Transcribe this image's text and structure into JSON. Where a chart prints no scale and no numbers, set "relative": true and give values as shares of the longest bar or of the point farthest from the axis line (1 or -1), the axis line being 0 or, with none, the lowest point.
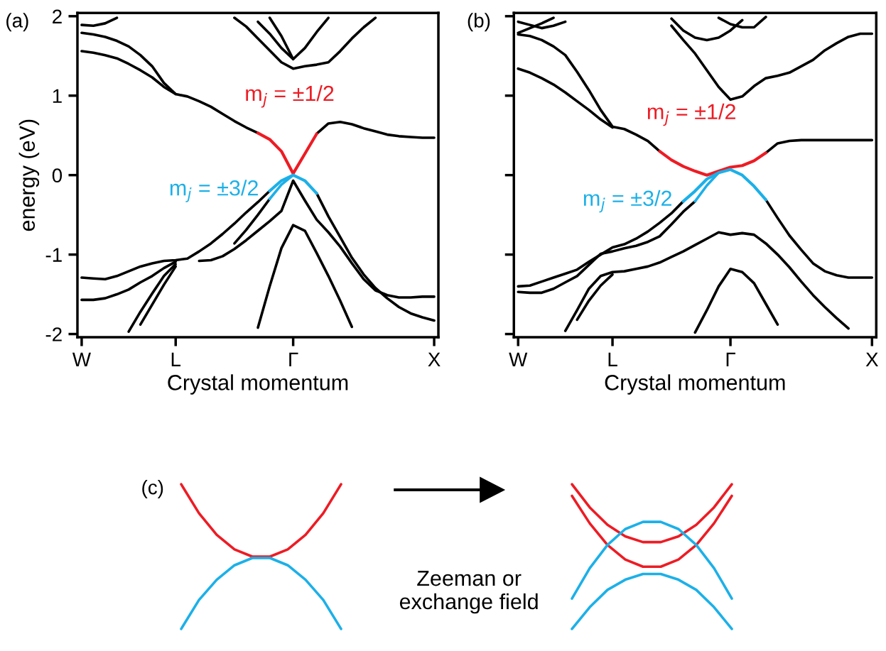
{
  "chart_data": [
    {
      "type": "line",
      "title": "(a)",
      "xlabel": "Crystal momentum",
      "ylabel": "energy (eV)",
      "categories": [
        "W",
        null,
        null,
        null,
        null,
        null,
        null,
        null,
        "L",
        null,
        null,
        null,
        null,
        null,
        null,
        null,
        null,
        null,
        "Γ",
        null,
        null,
        null,
        null,
        null,
        null,
        null,
        null,
        null,
        null,
        null,
        "X"
      ],
      "ylim": [
        -2.04,
        2.04
      ],
      "yticks": [
        -2,
        -1,
        0,
        1,
        2
      ],
      "series": [
        {
          "color": "#000000",
          "values": [
            1.79,
            1.77,
            1.74,
            1.69,
            1.62,
            1.51,
            1.37,
            1.16,
            1.02,
            0.99,
            0.93,
            0.86,
            0.77,
            0.68,
            0.6,
            0.53,
            null,
            null,
            null,
            null,
            0.52,
            0.65,
            0.67,
            0.64,
            0.59,
            0.55,
            0.51,
            0.49,
            0.48,
            0.47,
            0.47
          ]
        },
        {
          "color": "#000000",
          "values": [
            1.56,
            1.54,
            1.51,
            1.47,
            1.4,
            1.32,
            1.23,
            1.11,
            1.02,
            null,
            null,
            null,
            null,
            null,
            null,
            null,
            null,
            null,
            null,
            null,
            null,
            null,
            null,
            null,
            null,
            null,
            null,
            null,
            null,
            null,
            null
          ]
        },
        {
          "color": "#000000",
          "values": [
            null,
            null,
            null,
            null,
            null,
            null,
            null,
            null,
            null,
            null,
            null,
            null,
            null,
            1.98,
            1.87,
            1.72,
            1.57,
            1.42,
            1.34,
            1.37,
            1.39,
            1.42,
            1.56,
            1.72,
            1.86,
            1.98,
            null,
            null,
            null,
            null,
            null
          ]
        },
        {
          "color": "#000000",
          "values": [
            null,
            null,
            null,
            null,
            null,
            null,
            null,
            null,
            null,
            null,
            null,
            null,
            null,
            null,
            null,
            1.93,
            1.78,
            1.6,
            1.46,
            1.6,
            1.8,
            1.98,
            null,
            null,
            null,
            null,
            null,
            null,
            null,
            null,
            null
          ]
        },
        {
          "color": "#000000",
          "values": [
            null,
            null,
            null,
            null,
            null,
            null,
            null,
            null,
            null,
            null,
            null,
            null,
            null,
            null,
            null,
            null,
            1.98,
            1.75,
            1.46,
            null,
            null,
            null,
            null,
            null,
            null,
            null,
            null,
            null,
            null,
            null,
            null
          ]
        },
        {
          "color": "#000000",
          "values": [
            1.89,
            1.88,
            1.91,
            1.98,
            null,
            null,
            null,
            null,
            null,
            null,
            null,
            null,
            null,
            null,
            null,
            null,
            null,
            null,
            null,
            null,
            null,
            null,
            null,
            null,
            null,
            null,
            null,
            null,
            null,
            null,
            null
          ]
        },
        {
          "color": "#000000",
          "values": [
            -1.29,
            -1.3,
            -1.31,
            -1.27,
            -1.21,
            -1.15,
            -1.11,
            -1.08,
            -1.07,
            -1.05,
            -0.96,
            -0.86,
            -0.74,
            -0.61,
            -0.47,
            -0.34,
            -0.2,
            null,
            null,
            null,
            null,
            null,
            null,
            null,
            null,
            null,
            null,
            null,
            null,
            null,
            null
          ]
        },
        {
          "color": "#000000",
          "values": [
            null,
            null,
            null,
            null,
            null,
            null,
            null,
            null,
            null,
            null,
            null,
            null,
            null,
            -0.86,
            -0.69,
            -0.5,
            -0.3,
            null,
            null,
            null,
            null,
            null,
            null,
            null,
            null,
            null,
            null,
            null,
            null,
            null,
            null
          ]
        },
        {
          "color": "#000000",
          "values": [
            null,
            null,
            null,
            null,
            null,
            null,
            null,
            null,
            null,
            null,
            -1.08,
            -1.07,
            -1.02,
            -0.93,
            -0.82,
            -0.7,
            -0.58,
            -0.45,
            -0.07,
            -0.32,
            -0.56,
            -0.72,
            -0.9,
            -1.11,
            -1.31,
            -1.45,
            -1.51,
            -1.54,
            -1.54,
            -1.53,
            -1.53
          ]
        },
        {
          "color": "#000000",
          "values": [
            null,
            null,
            null,
            null,
            null,
            null,
            null,
            null,
            null,
            null,
            null,
            null,
            null,
            null,
            null,
            null,
            null,
            null,
            null,
            null,
            -0.23,
            -0.52,
            -0.78,
            -1.04,
            -1.25,
            -1.42,
            -1.55,
            -1.66,
            -1.74,
            -1.79,
            -1.83
          ]
        },
        {
          "color": "#000000",
          "values": [
            -1.57,
            -1.57,
            -1.55,
            -1.5,
            -1.44,
            -1.35,
            -1.27,
            -1.17,
            -1.09,
            null,
            null,
            null,
            null,
            null,
            null,
            null,
            null,
            null,
            null,
            null,
            null,
            null,
            null,
            null,
            null,
            null,
            null,
            null,
            null,
            null,
            null
          ]
        },
        {
          "color": "#000000",
          "values": [
            null,
            null,
            null,
            null,
            -1.97,
            -1.72,
            -1.49,
            -1.27,
            -1.12,
            null,
            null,
            null,
            null,
            null,
            null,
            null,
            null,
            null,
            null,
            null,
            null,
            null,
            null,
            null,
            null,
            null,
            null,
            null,
            null,
            null,
            null
          ]
        },
        {
          "color": "#000000",
          "values": [
            null,
            null,
            null,
            null,
            null,
            -1.88,
            -1.63,
            -1.38,
            -1.15,
            null,
            null,
            null,
            null,
            null,
            null,
            null,
            null,
            null,
            null,
            null,
            null,
            null,
            null,
            null,
            null,
            null,
            null,
            null,
            null,
            null,
            null
          ]
        },
        {
          "color": "#000000",
          "values": [
            null,
            null,
            null,
            null,
            null,
            null,
            null,
            null,
            null,
            null,
            null,
            null,
            null,
            null,
            null,
            -1.92,
            -1.4,
            -0.92,
            -0.63,
            -0.7,
            -0.98,
            -1.27,
            -1.58,
            -1.91,
            null,
            null,
            null,
            null,
            null,
            null,
            null
          ]
        },
        {
          "name": "m$_{j}$ = ±1/2",
          "color": "#ed1c24",
          "values": [
            null,
            null,
            null,
            null,
            null,
            null,
            null,
            null,
            null,
            null,
            null,
            null,
            null,
            null,
            null,
            0.53,
            0.45,
            0.3,
            0.02,
            0.27,
            0.52,
            null,
            null,
            null,
            null,
            null,
            null,
            null,
            null,
            null,
            null
          ]
        },
        {
          "name": "m$_{j}$ = ±3/2",
          "color": "#1cb0e8",
          "values": [
            null,
            null,
            null,
            null,
            null,
            null,
            null,
            null,
            null,
            null,
            null,
            null,
            null,
            null,
            null,
            null,
            -0.2,
            -0.07,
            0.0,
            -0.07,
            -0.23,
            null,
            null,
            null,
            null,
            null,
            null,
            null,
            null,
            null,
            null
          ]
        },
        {
          "color": "#1cb0e8",
          "values": [
            null,
            null,
            null,
            null,
            null,
            null,
            null,
            null,
            null,
            null,
            null,
            null,
            null,
            null,
            null,
            null,
            -0.3,
            -0.12,
            0.0,
            null,
            null,
            null,
            null,
            null,
            null,
            null,
            null,
            null,
            null,
            null,
            null
          ]
        }
      ]
    },
    {
      "type": "line",
      "title": "(b)",
      "xlabel": "Crystal momentum",
      "tick_labels": "x",
      "categories": [
        "W",
        null,
        null,
        null,
        null,
        null,
        null,
        null,
        "L",
        null,
        null,
        null,
        null,
        null,
        null,
        null,
        null,
        null,
        "Γ",
        null,
        null,
        null,
        null,
        null,
        null,
        null,
        null,
        null,
        null,
        null,
        "X"
      ],
      "ylim": [
        -2.04,
        2.04
      ],
      "yticks": [
        -2,
        -1,
        0,
        1,
        2
      ],
      "series": [
        {
          "color": "#000000",
          "values": [
            1.77,
            1.75,
            1.7,
            1.62,
            1.51,
            1.3,
            1.07,
            0.82,
            0.61,
            0.58,
            0.51,
            0.43,
            0.3,
            null,
            null,
            null,
            null,
            null,
            null,
            null,
            null,
            0.28,
            0.4,
            0.43,
            0.44,
            0.44,
            0.44,
            0.44,
            0.44,
            0.44,
            0.44
          ]
        },
        {
          "color": "#000000",
          "values": [
            1.34,
            1.29,
            1.22,
            1.14,
            1.04,
            0.93,
            0.82,
            0.7,
            0.6,
            null,
            null,
            null,
            null,
            null,
            null,
            null,
            null,
            null,
            null,
            null,
            null,
            null,
            null,
            null,
            null,
            null,
            null,
            null,
            null,
            null,
            null
          ]
        },
        {
          "color": "#000000",
          "values": [
            1.93,
            1.89,
            1.85,
            1.88,
            1.93,
            null,
            null,
            null,
            null,
            null,
            null,
            null,
            null,
            null,
            null,
            null,
            null,
            null,
            null,
            null,
            null,
            null,
            null,
            null,
            null,
            null,
            null,
            null,
            null,
            null,
            null
          ]
        },
        {
          "color": "#000000",
          "values": [
            1.79,
            1.85,
            1.91,
            1.98,
            null,
            null,
            null,
            null,
            null,
            null,
            null,
            null,
            null,
            null,
            null,
            null,
            null,
            null,
            null,
            null,
            null,
            null,
            null,
            null,
            null,
            null,
            null,
            null,
            null,
            null,
            null
          ]
        },
        {
          "color": "#000000",
          "values": [
            null,
            null,
            null,
            null,
            null,
            null,
            null,
            null,
            null,
            null,
            null,
            null,
            null,
            1.88,
            1.7,
            1.53,
            1.32,
            1.11,
            0.95,
            0.99,
            1.12,
            1.22,
            1.25,
            1.29,
            1.37,
            1.45,
            1.57,
            1.66,
            1.74,
            1.78,
            1.78
          ]
        },
        {
          "color": "#000000",
          "values": [
            null,
            null,
            null,
            null,
            null,
            null,
            null,
            null,
            null,
            null,
            null,
            null,
            null,
            1.97,
            1.82,
            1.73,
            1.7,
            1.73,
            1.82,
            1.95,
            null,
            null,
            null,
            null,
            null,
            null,
            null,
            null,
            null,
            null,
            null
          ]
        },
        {
          "color": "#000000",
          "values": [
            null,
            null,
            null,
            null,
            null,
            null,
            null,
            null,
            null,
            null,
            null,
            null,
            null,
            null,
            null,
            null,
            null,
            1.98,
            1.9,
            1.86,
            1.86,
            1.99,
            null,
            null,
            null,
            null,
            null,
            null,
            null,
            null,
            null
          ]
        },
        {
          "color": "#000000",
          "values": [
            -1.4,
            -1.39,
            -1.34,
            -1.29,
            -1.24,
            -1.19,
            -1.09,
            -1.0,
            -0.91,
            -0.87,
            -0.8,
            -0.71,
            -0.6,
            -0.48,
            -0.33,
            null,
            null,
            null,
            null,
            null,
            null,
            null,
            null,
            null,
            null,
            null,
            null,
            null,
            null,
            null,
            null
          ]
        },
        {
          "color": "#000000",
          "values": [
            -1.47,
            -1.48,
            -1.48,
            -1.43,
            -1.35,
            -1.27,
            -1.13,
            -0.99,
            -0.96,
            -0.92,
            -0.89,
            -0.84,
            -0.77,
            -0.62,
            -0.46,
            -0.33,
            null,
            null,
            null,
            null,
            null,
            null,
            null,
            null,
            null,
            null,
            null,
            null,
            null,
            null,
            null
          ]
        },
        {
          "color": "#000000",
          "values": [
            null,
            null,
            null,
            null,
            null,
            null,
            null,
            null,
            null,
            null,
            null,
            null,
            null,
            null,
            null,
            null,
            null,
            null,
            null,
            null,
            null,
            -0.31,
            -0.54,
            -0.76,
            -0.94,
            -1.11,
            -1.21,
            -1.26,
            -1.29,
            -1.29,
            -1.29
          ]
        },
        {
          "color": "#000000",
          "values": [
            null,
            null,
            null,
            null,
            -1.96,
            -1.7,
            -1.43,
            -1.27,
            -1.22,
            -1.21,
            -1.18,
            -1.15,
            -1.1,
            -1.03,
            -0.96,
            -0.88,
            -0.8,
            -0.72,
            -0.75,
            -0.73,
            -0.75,
            -0.86,
            -1.0,
            -1.16,
            -1.34,
            -1.51,
            -1.66,
            -1.8,
            -1.93,
            null,
            null
          ]
        },
        {
          "color": "#000000",
          "values": [
            null,
            null,
            null,
            null,
            null,
            -1.82,
            -1.58,
            -1.39,
            -1.25,
            null,
            null,
            null,
            null,
            null,
            null,
            null,
            null,
            null,
            null,
            null,
            null,
            null,
            null,
            null,
            null,
            null,
            null,
            null,
            null,
            null,
            null
          ]
        },
        {
          "color": "#000000",
          "values": [
            null,
            null,
            null,
            null,
            null,
            null,
            null,
            null,
            null,
            null,
            null,
            null,
            null,
            null,
            null,
            -1.98,
            -1.7,
            -1.4,
            -1.18,
            -1.22,
            -1.36,
            -1.62,
            -1.88,
            null,
            null,
            null,
            null,
            null,
            null,
            null,
            null
          ]
        },
        {
          "name": "m$_{j}$ = ±1/2",
          "color": "#ed1c24",
          "values": [
            null,
            null,
            null,
            null,
            null,
            null,
            null,
            null,
            null,
            null,
            null,
            null,
            0.3,
            0.19,
            0.11,
            0.05,
            0.0,
            0.05,
            0.1,
            0.12,
            0.18,
            0.28,
            null,
            null,
            null,
            null,
            null,
            null,
            null,
            null,
            null
          ]
        },
        {
          "name": "m$_{j}$ = ±3/2",
          "color": "#1cb0e8",
          "values": [
            null,
            null,
            null,
            null,
            null,
            null,
            null,
            null,
            null,
            null,
            null,
            null,
            null,
            null,
            -0.33,
            -0.2,
            -0.05,
            0.03,
            0.07,
            0.0,
            -0.14,
            -0.31,
            null,
            null,
            null,
            null,
            null,
            null,
            null,
            null,
            null
          ]
        },
        {
          "color": "#1cb0e8",
          "values": [
            null,
            null,
            null,
            null,
            null,
            null,
            null,
            null,
            null,
            null,
            null,
            null,
            null,
            null,
            null,
            -0.33,
            -0.13,
            0.03,
            null,
            null,
            null,
            null,
            null,
            null,
            null,
            null,
            null,
            null,
            null,
            null,
            null
          ]
        }
      ]
    },
    {
      "type": "line",
      "title": "(c)",
      "relative": true,
      "tick_labels": false,
      "annotations": [
        "Zeeman or\nexchange field"
      ],
      "categories": [
        null,
        null,
        null,
        null,
        null,
        null,
        null,
        null,
        null,
        null,
        null,
        null,
        null,
        null,
        null,
        null,
        null,
        null,
        null,
        null,
        null,
        null,
        null,
        null,
        null,
        null,
        null,
        null,
        null,
        null,
        null,
        null
      ],
      "series": [
        {
          "color": "#ed1c24",
          "values": [
            1.0,
            0.8,
            0.65,
            0.55,
            0.5,
            0.5,
            0.55,
            0.65,
            0.8,
            1.0,
            null,
            null,
            null,
            null,
            null,
            null,
            null,
            null,
            null,
            null,
            null,
            null,
            1.0,
            0.84,
            0.72,
            0.64,
            0.6,
            0.6,
            0.64,
            0.72,
            0.84,
            1.0
          ]
        },
        {
          "color": "#ed1c24",
          "values": [
            null,
            null,
            null,
            null,
            null,
            null,
            null,
            null,
            null,
            null,
            null,
            null,
            null,
            null,
            null,
            null,
            null,
            null,
            null,
            null,
            null,
            null,
            0.92,
            0.73,
            0.58,
            0.48,
            0.43,
            0.43,
            0.48,
            0.58,
            0.73,
            0.92
          ]
        },
        {
          "color": "#1cb0e8",
          "values": [
            0,
            0.2,
            0.34,
            0.44,
            0.49,
            0.49,
            0.44,
            0.34,
            0.2,
            0,
            null,
            null,
            null,
            null,
            null,
            null,
            null,
            null,
            null,
            null,
            null,
            null,
            0.21,
            0.42,
            0.58,
            0.69,
            0.74,
            0.74,
            0.69,
            0.58,
            0.42,
            0.21
          ]
        },
        {
          "color": "#1cb0e8",
          "values": [
            null,
            null,
            null,
            null,
            null,
            null,
            null,
            null,
            null,
            null,
            null,
            null,
            null,
            null,
            null,
            null,
            null,
            null,
            null,
            null,
            null,
            null,
            0,
            0.15,
            0.27,
            0.34,
            0.38,
            0.38,
            0.34,
            0.27,
            0.15,
            0
          ]
        }
      ]
    }
  ]
}
